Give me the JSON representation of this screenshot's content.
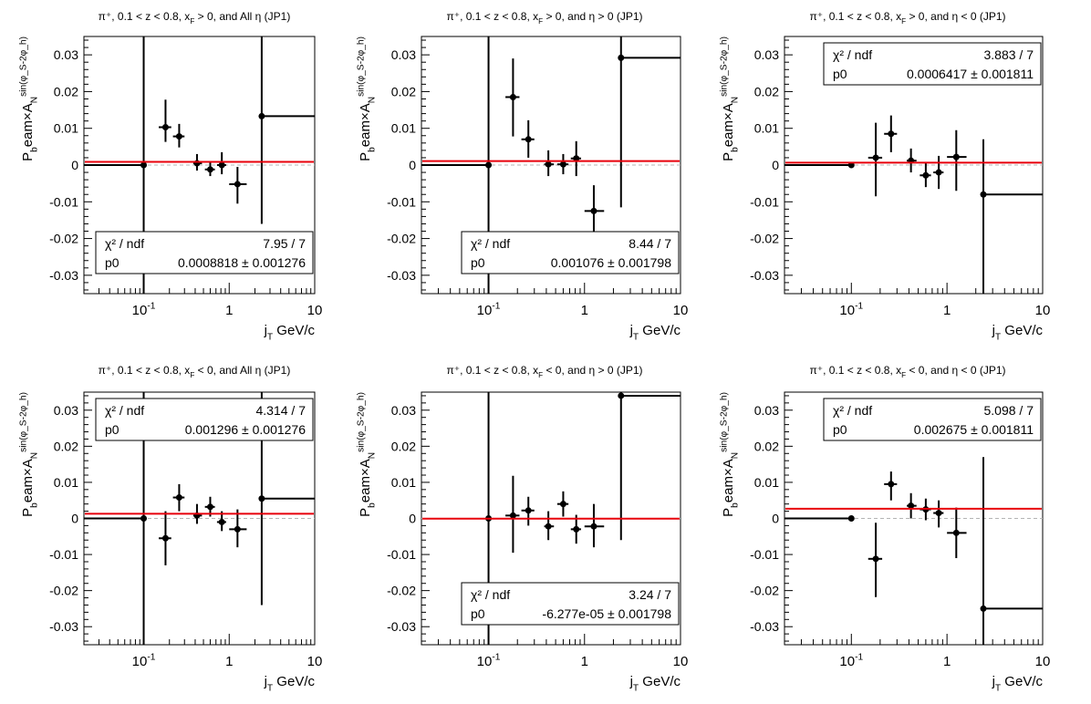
{
  "chart_data": [
    {
      "type": "scatter",
      "title": "π⁺, 0.1 < z < 0.8, x_F > 0, and All η (JP1)",
      "xlabel": "j_T GeV/c",
      "ylabel": "P_beam×A_N^{sin(φ_S-2φ_h)}",
      "xscale": "log",
      "xlim": [
        0.02,
        10
      ],
      "ylim": [
        -0.035,
        0.035
      ],
      "yticks": [
        "-0.03",
        "-0.02",
        "-0.01",
        "0",
        "0.01",
        "0.02",
        "0.03"
      ],
      "xticks": [
        "10^-1",
        "1",
        "10"
      ],
      "points": [
        {
          "x": 0.1,
          "xlo": 0.02,
          "xhi": 0.1,
          "y": 0.0,
          "ylo": -0.035,
          "yhi": 0.035
        },
        {
          "x": 0.18,
          "xlo": 0.15,
          "xhi": 0.21,
          "y": 0.0103,
          "ylo": 0.0063,
          "yhi": 0.0178
        },
        {
          "x": 0.26,
          "xlo": 0.22,
          "xhi": 0.3,
          "y": 0.0078,
          "ylo": 0.0048,
          "yhi": 0.0112
        },
        {
          "x": 0.42,
          "xlo": 0.38,
          "xhi": 0.48,
          "y": 0.0005,
          "ylo": -0.0015,
          "yhi": 0.003
        },
        {
          "x": 0.6,
          "xlo": 0.52,
          "xhi": 0.68,
          "y": -0.0012,
          "ylo": -0.003,
          "yhi": 0.001
        },
        {
          "x": 0.82,
          "xlo": 0.72,
          "xhi": 0.92,
          "y": 0.0,
          "ylo": -0.0025,
          "yhi": 0.0035
        },
        {
          "x": 1.25,
          "xlo": 1.0,
          "xhi": 1.6,
          "y": -0.0052,
          "ylo": -0.0105,
          "yhi": -0.0005
        },
        {
          "x": 2.4,
          "xlo": 2.4,
          "xhi": 10,
          "y": 0.0133,
          "ylo": -0.016,
          "yhi": 0.035
        }
      ],
      "fit_value": 0.0008818,
      "stats": {
        "label1": "χ² / ndf",
        "value1": "7.95 / 7",
        "label2": "p0",
        "value2": "0.0008818 ± 0.001276"
      },
      "stats_position": "bottom-right"
    },
    {
      "type": "scatter",
      "title": "π⁺, 0.1 < z < 0.8, x_F > 0, and η > 0 (JP1)",
      "xlabel": "j_T GeV/c",
      "ylabel": "P_beam×A_N^{sin(φ_S-2φ_h)}",
      "xscale": "log",
      "xlim": [
        0.02,
        10
      ],
      "ylim": [
        -0.035,
        0.035
      ],
      "yticks": [
        "-0.03",
        "-0.02",
        "-0.01",
        "0",
        "0.01",
        "0.02",
        "0.03"
      ],
      "xticks": [
        "10^-1",
        "1",
        "10"
      ],
      "points": [
        {
          "x": 0.1,
          "xlo": 0.02,
          "xhi": 0.1,
          "y": 0.0,
          "ylo": -0.035,
          "yhi": 0.035
        },
        {
          "x": 0.18,
          "xlo": 0.15,
          "xhi": 0.21,
          "y": 0.0185,
          "ylo": 0.0078,
          "yhi": 0.029
        },
        {
          "x": 0.26,
          "xlo": 0.22,
          "xhi": 0.3,
          "y": 0.007,
          "ylo": 0.002,
          "yhi": 0.0122
        },
        {
          "x": 0.42,
          "xlo": 0.38,
          "xhi": 0.48,
          "y": 0.0002,
          "ylo": -0.003,
          "yhi": 0.004
        },
        {
          "x": 0.6,
          "xlo": 0.52,
          "xhi": 0.68,
          "y": 0.0002,
          "ylo": -0.0025,
          "yhi": 0.003
        },
        {
          "x": 0.82,
          "xlo": 0.72,
          "xhi": 0.92,
          "y": 0.0018,
          "ylo": -0.003,
          "yhi": 0.0065
        },
        {
          "x": 1.25,
          "xlo": 1.0,
          "xhi": 1.6,
          "y": -0.0125,
          "ylo": -0.0205,
          "yhi": -0.0055
        },
        {
          "x": 2.4,
          "xlo": 2.4,
          "xhi": 10,
          "y": 0.0292,
          "ylo": -0.0115,
          "yhi": 0.035
        }
      ],
      "fit_value": 0.001076,
      "stats": {
        "label1": "χ² / ndf",
        "value1": "8.44 / 7",
        "label2": "p0",
        "value2": "0.001076 ± 0.001798"
      },
      "stats_position": "bottom-right"
    },
    {
      "type": "scatter",
      "title": "π⁺, 0.1 < z < 0.8, x_F > 0, and η < 0 (JP1)",
      "xlabel": "j_T GeV/c",
      "ylabel": "P_beam×A_N^{sin(φ_S-2φ_h)}",
      "xscale": "log",
      "xlim": [
        0.02,
        10
      ],
      "ylim": [
        -0.035,
        0.035
      ],
      "yticks": [
        "-0.03",
        "-0.02",
        "-0.01",
        "0",
        "0.01",
        "0.02",
        "0.03"
      ],
      "xticks": [
        "10^-1",
        "1",
        "10"
      ],
      "points": [
        {
          "x": 0.1,
          "xlo": 0.02,
          "xhi": 0.1,
          "y": 0.0,
          "ylo": 0.0,
          "yhi": 0.0
        },
        {
          "x": 0.18,
          "xlo": 0.15,
          "xhi": 0.21,
          "y": 0.002,
          "ylo": -0.0085,
          "yhi": 0.0115
        },
        {
          "x": 0.26,
          "xlo": 0.22,
          "xhi": 0.3,
          "y": 0.0085,
          "ylo": 0.0035,
          "yhi": 0.0135
        },
        {
          "x": 0.42,
          "xlo": 0.38,
          "xhi": 0.48,
          "y": 0.0012,
          "ylo": -0.002,
          "yhi": 0.0045
        },
        {
          "x": 0.6,
          "xlo": 0.52,
          "xhi": 0.68,
          "y": -0.0028,
          "ylo": -0.006,
          "yhi": 0.0005
        },
        {
          "x": 0.82,
          "xlo": 0.72,
          "xhi": 0.92,
          "y": -0.002,
          "ylo": -0.0065,
          "yhi": 0.0025
        },
        {
          "x": 1.25,
          "xlo": 1.0,
          "xhi": 1.6,
          "y": 0.0022,
          "ylo": -0.007,
          "yhi": 0.0095
        },
        {
          "x": 2.4,
          "xlo": 2.4,
          "xhi": 10,
          "y": -0.008,
          "ylo": -0.035,
          "yhi": 0.007
        }
      ],
      "fit_value": 0.0006417,
      "stats": {
        "label1": "χ² / ndf",
        "value1": "3.883 / 7",
        "label2": "p0",
        "value2": "0.0006417 ± 0.001811"
      },
      "stats_position": "top-right"
    },
    {
      "type": "scatter",
      "title": "π⁺, 0.1 < z < 0.8, x_F < 0, and All η (JP1)",
      "xlabel": "j_T GeV/c",
      "ylabel": "P_beam×A_N^{sin(φ_S-2φ_h)}",
      "xscale": "log",
      "xlim": [
        0.02,
        10
      ],
      "ylim": [
        -0.035,
        0.035
      ],
      "yticks": [
        "-0.03",
        "-0.02",
        "-0.01",
        "0",
        "0.01",
        "0.02",
        "0.03"
      ],
      "xticks": [
        "10^-1",
        "1",
        "10"
      ],
      "points": [
        {
          "x": 0.1,
          "xlo": 0.02,
          "xhi": 0.1,
          "y": 0.0,
          "ylo": -0.035,
          "yhi": 0.035
        },
        {
          "x": 0.18,
          "xlo": 0.15,
          "xhi": 0.21,
          "y": -0.0055,
          "ylo": -0.013,
          "yhi": 0.002
        },
        {
          "x": 0.26,
          "xlo": 0.22,
          "xhi": 0.3,
          "y": 0.0058,
          "ylo": 0.002,
          "yhi": 0.0095
        },
        {
          "x": 0.42,
          "xlo": 0.38,
          "xhi": 0.48,
          "y": 0.0008,
          "ylo": -0.0015,
          "yhi": 0.004
        },
        {
          "x": 0.6,
          "xlo": 0.52,
          "xhi": 0.68,
          "y": 0.0032,
          "ylo": 0.0005,
          "yhi": 0.006
        },
        {
          "x": 0.82,
          "xlo": 0.72,
          "xhi": 0.92,
          "y": -0.001,
          "ylo": -0.0035,
          "yhi": 0.002
        },
        {
          "x": 1.25,
          "xlo": 1.0,
          "xhi": 1.6,
          "y": -0.003,
          "ylo": -0.008,
          "yhi": 0.0025
        },
        {
          "x": 2.4,
          "xlo": 2.4,
          "xhi": 10,
          "y": 0.0055,
          "ylo": -0.024,
          "yhi": 0.035
        }
      ],
      "fit_value": 0.001296,
      "stats": {
        "label1": "χ² / ndf",
        "value1": "4.314 / 7",
        "label2": "p0",
        "value2": "0.001296 ± 0.001276"
      },
      "stats_position": "top-right"
    },
    {
      "type": "scatter",
      "title": "π⁺, 0.1 < z < 0.8, x_F < 0, and η > 0 (JP1)",
      "xlabel": "j_T GeV/c",
      "ylabel": "P_beam×A_N^{sin(φ_S-2φ_h)}",
      "xscale": "log",
      "xlim": [
        0.02,
        10
      ],
      "ylim": [
        -0.035,
        0.035
      ],
      "yticks": [
        "-0.03",
        "-0.02",
        "-0.01",
        "0",
        "0.01",
        "0.02",
        "0.03"
      ],
      "xticks": [
        "10^-1",
        "1",
        "10"
      ],
      "points": [
        {
          "x": 0.1,
          "xlo": 0.1,
          "xhi": 0.1,
          "y": 0.0,
          "ylo": -0.035,
          "yhi": 0.035
        },
        {
          "x": 0.18,
          "xlo": 0.15,
          "xhi": 0.21,
          "y": 0.0008,
          "ylo": -0.0095,
          "yhi": 0.0118
        },
        {
          "x": 0.26,
          "xlo": 0.22,
          "xhi": 0.3,
          "y": 0.0022,
          "ylo": -0.002,
          "yhi": 0.006
        },
        {
          "x": 0.42,
          "xlo": 0.38,
          "xhi": 0.48,
          "y": -0.0022,
          "ylo": -0.006,
          "yhi": 0.002
        },
        {
          "x": 0.6,
          "xlo": 0.52,
          "xhi": 0.68,
          "y": 0.004,
          "ylo": 0.0005,
          "yhi": 0.0075
        },
        {
          "x": 0.82,
          "xlo": 0.72,
          "xhi": 0.92,
          "y": -0.003,
          "ylo": -0.007,
          "yhi": 0.001
        },
        {
          "x": 1.25,
          "xlo": 1.0,
          "xhi": 1.6,
          "y": -0.0022,
          "ylo": -0.008,
          "yhi": 0.004
        },
        {
          "x": 2.4,
          "xlo": 2.4,
          "xhi": 10,
          "y": 0.034,
          "ylo": -0.006,
          "yhi": 0.035
        }
      ],
      "fit_value": -6.277e-05,
      "stats": {
        "label1": "χ² / ndf",
        "value1": "3.24 / 7",
        "label2": "p0",
        "value2": "-6.277e-05 ± 0.001798"
      },
      "stats_position": "bottom-right"
    },
    {
      "type": "scatter",
      "title": "π⁺, 0.1 < z < 0.8, x_F < 0, and η < 0 (JP1)",
      "xlabel": "j_T GeV/c",
      "ylabel": "P_beam×A_N^{sin(φ_S-2φ_h)}",
      "xscale": "log",
      "xlim": [
        0.02,
        10
      ],
      "ylim": [
        -0.035,
        0.035
      ],
      "yticks": [
        "-0.03",
        "-0.02",
        "-0.01",
        "0",
        "0.01",
        "0.02",
        "0.03"
      ],
      "xticks": [
        "10^-1",
        "1",
        "10"
      ],
      "points": [
        {
          "x": 0.1,
          "xlo": 0.02,
          "xhi": 0.1,
          "y": 0.0,
          "ylo": 0.0,
          "yhi": 0.0
        },
        {
          "x": 0.18,
          "xlo": 0.15,
          "xhi": 0.21,
          "y": -0.0112,
          "ylo": -0.0218,
          "yhi": -0.0012
        },
        {
          "x": 0.26,
          "xlo": 0.22,
          "xhi": 0.3,
          "y": 0.0095,
          "ylo": 0.005,
          "yhi": 0.013
        },
        {
          "x": 0.42,
          "xlo": 0.38,
          "xhi": 0.48,
          "y": 0.0035,
          "ylo": 0.0,
          "yhi": 0.007
        },
        {
          "x": 0.6,
          "xlo": 0.52,
          "xhi": 0.68,
          "y": 0.0025,
          "ylo": -0.0005,
          "yhi": 0.0055
        },
        {
          "x": 0.82,
          "xlo": 0.72,
          "xhi": 0.92,
          "y": 0.0015,
          "ylo": -0.0025,
          "yhi": 0.005
        },
        {
          "x": 1.25,
          "xlo": 1.0,
          "xhi": 1.6,
          "y": -0.004,
          "ylo": -0.011,
          "yhi": 0.003
        },
        {
          "x": 2.4,
          "xlo": 2.4,
          "xhi": 10,
          "y": -0.025,
          "ylo": -0.035,
          "yhi": 0.017
        }
      ],
      "fit_value": 0.002675,
      "stats": {
        "label1": "χ² / ndf",
        "value1": "5.098 / 7",
        "label2": "p0",
        "value2": "0.002675 ± 0.001811"
      },
      "stats_position": "top-right"
    }
  ]
}
